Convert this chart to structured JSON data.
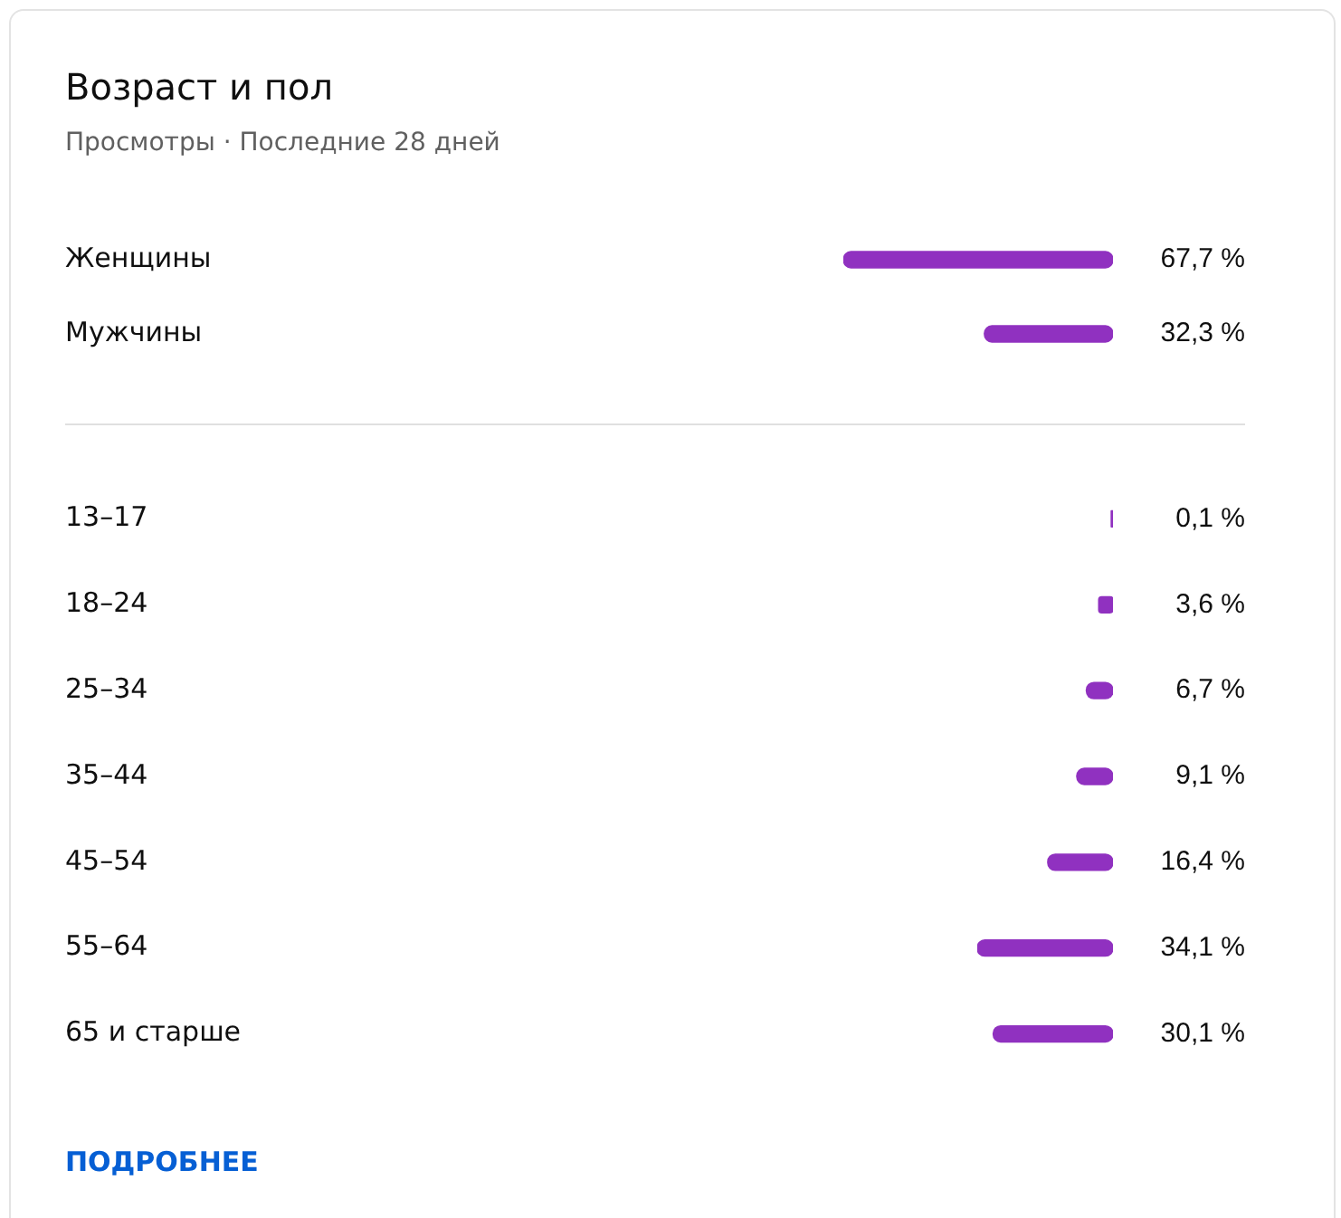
{
  "chart_data": [
    {
      "type": "bar",
      "title": "Возраст и пол",
      "subtitle": "Просмотры · Последние 28 дней",
      "orientation": "horizontal",
      "categories": [
        "Женщины",
        "Мужчины"
      ],
      "values": [
        67.7,
        32.3
      ],
      "value_labels": [
        "67,7 %",
        "32,3 %"
      ],
      "color": "#9031c0",
      "tick_labels": "y"
    },
    {
      "type": "bar",
      "orientation": "horizontal",
      "categories": [
        "13–17",
        "18–24",
        "25–34",
        "35–44",
        "45–54",
        "55–64",
        "65 и старше"
      ],
      "values": [
        0.1,
        3.6,
        6.7,
        9.1,
        16.4,
        34.1,
        30.1
      ],
      "value_labels": [
        "0,1 %",
        "3,6 %",
        "6,7 %",
        "9,1 %",
        "16,4 %",
        "34,1 %",
        "30,1 %"
      ],
      "color": "#9031c0",
      "tick_labels": "y",
      "annotations": [
        "ПОДРОБНЕЕ"
      ]
    }
  ]
}
